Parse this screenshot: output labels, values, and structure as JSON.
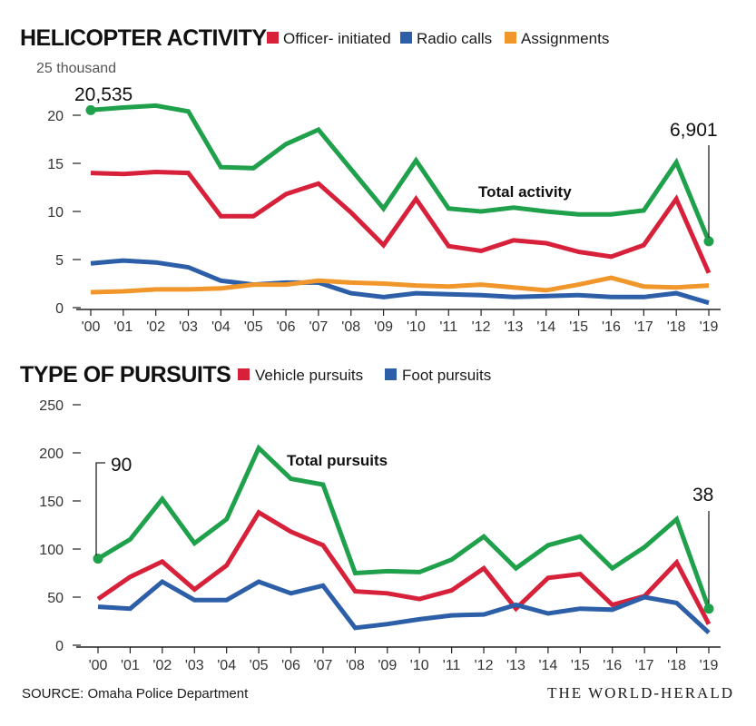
{
  "colors": {
    "total": "#1fa04b",
    "red": "#d7213a",
    "blue": "#2d5ea8",
    "orange": "#f0962a",
    "axis": "#222222",
    "grid_tick": "#222222"
  },
  "footer": {
    "source": "SOURCE: Omaha Police Department",
    "brand": "THE WORLD-HERALD"
  },
  "chart_data": [
    {
      "type": "line",
      "title": "HELICOPTER ACTIVITY",
      "unit_label": "25 thousand",
      "categories": [
        "'00",
        "'01",
        "'02",
        "'03",
        "'04",
        "'05",
        "'06",
        "'07",
        "'08",
        "'09",
        "'10",
        "'11",
        "'12",
        "'13",
        "'14",
        "'15",
        "'16",
        "'17",
        "'18",
        "'19"
      ],
      "ylim": [
        0,
        25
      ],
      "yticks": [
        "0",
        "5",
        "10",
        "15",
        "20"
      ],
      "ytick_values": [
        0,
        5,
        10,
        15,
        20
      ],
      "legend": [
        {
          "name": "Officer- initiated",
          "color": "#d7213a"
        },
        {
          "name": "Radio calls",
          "color": "#2d5ea8"
        },
        {
          "name": "Assignments",
          "color": "#f0962a"
        }
      ],
      "series": [
        {
          "key": "total",
          "label": "Total activity",
          "color": "#1fa04b",
          "values": [
            20.535,
            20.8,
            21.0,
            20.4,
            14.6,
            14.5,
            17.0,
            18.5,
            14.4,
            10.3,
            15.3,
            10.3,
            10.0,
            10.4,
            10.0,
            9.7,
            9.7,
            10.1,
            15.1,
            6.901
          ]
        },
        {
          "key": "officer",
          "color": "#d7213a",
          "values": [
            14.0,
            13.9,
            14.1,
            14.0,
            9.5,
            9.5,
            11.8,
            12.9,
            9.9,
            6.5,
            11.3,
            6.4,
            5.9,
            7.0,
            6.7,
            5.8,
            5.3,
            6.5,
            11.3,
            3.6
          ]
        },
        {
          "key": "radio",
          "color": "#2d5ea8",
          "values": [
            4.6,
            4.9,
            4.7,
            4.2,
            2.8,
            2.4,
            2.6,
            2.6,
            1.5,
            1.1,
            1.5,
            1.4,
            1.3,
            1.1,
            1.2,
            1.3,
            1.1,
            1.1,
            1.5,
            0.5
          ]
        },
        {
          "key": "assign",
          "color": "#f0962a",
          "values": [
            1.6,
            1.7,
            1.9,
            1.9,
            2.0,
            2.4,
            2.4,
            2.8,
            2.6,
            2.5,
            2.3,
            2.2,
            2.4,
            2.1,
            1.8,
            2.4,
            3.1,
            2.2,
            2.1,
            2.3
          ]
        }
      ],
      "annotations": {
        "start": "20,535",
        "end": "6,901"
      }
    },
    {
      "type": "line",
      "title": "TYPE OF PURSUITS",
      "categories": [
        "'00",
        "'01",
        "'02",
        "'03",
        "'04",
        "'05",
        "'06",
        "'07",
        "'08",
        "'09",
        "'10",
        "'11",
        "'12",
        "'13",
        "'14",
        "'15",
        "'16",
        "'17",
        "'18",
        "'19"
      ],
      "ylim": [
        0,
        250
      ],
      "yticks": [
        "0",
        "50",
        "100",
        "150",
        "200",
        "250"
      ],
      "ytick_values": [
        0,
        50,
        100,
        150,
        200,
        250
      ],
      "legend": [
        {
          "name": "Vehicle pursuits",
          "color": "#d7213a"
        },
        {
          "name": "Foot pursuits",
          "color": "#2d5ea8"
        }
      ],
      "series": [
        {
          "key": "total",
          "label": "Total pursuits",
          "color": "#1fa04b",
          "values": [
            90,
            110,
            152,
            106,
            131,
            205,
            173,
            167,
            75,
            77,
            76,
            89,
            113,
            80,
            104,
            113,
            80,
            102,
            131,
            38
          ]
        },
        {
          "key": "vehicle",
          "color": "#d7213a",
          "values": [
            48,
            71,
            87,
            58,
            83,
            138,
            118,
            104,
            56,
            54,
            48,
            57,
            80,
            38,
            70,
            74,
            42,
            51,
            86,
            22
          ]
        },
        {
          "key": "foot",
          "color": "#2d5ea8",
          "values": [
            40,
            38,
            66,
            47,
            47,
            66,
            54,
            62,
            18,
            22,
            27,
            31,
            32,
            42,
            33,
            38,
            37,
            50,
            44,
            13
          ]
        }
      ],
      "annotations": {
        "start": "90",
        "end": "38"
      }
    }
  ]
}
